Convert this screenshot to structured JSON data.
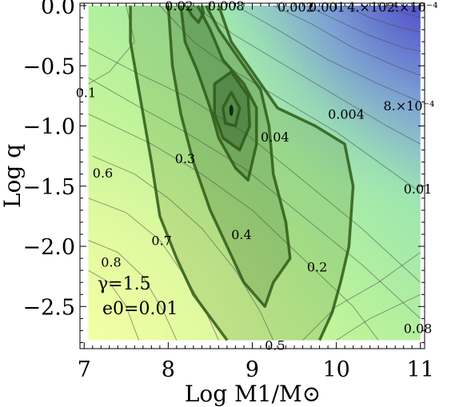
{
  "chart_data": {
    "type": "contour",
    "xlabel": "Log M1/M⊙",
    "ylabel": "Log q",
    "xlim": [
      6.95,
      11.05
    ],
    "ylim": [
      -2.85,
      0.02
    ],
    "x_ticks": [
      {
        "value": 7,
        "label": "7"
      },
      {
        "value": 8,
        "label": "8"
      },
      {
        "value": 9,
        "label": "9"
      },
      {
        "value": 10,
        "label": "10"
      },
      {
        "value": 11,
        "label": "11"
      }
    ],
    "y_ticks": [
      {
        "value": 0.0,
        "label": "0.0"
      },
      {
        "value": -0.5,
        "label": "−0.5"
      },
      {
        "value": -1.0,
        "label": "−1.0"
      },
      {
        "value": -1.5,
        "label": "−1.5"
      },
      {
        "value": -2.0,
        "label": "−2.0"
      },
      {
        "value": -2.5,
        "label": "−2.5"
      }
    ],
    "parameters": {
      "gamma_label": "γ=1.5",
      "e0_label": "e0=0.01"
    },
    "colors": {
      "low": "#f0ffa0",
      "mid": "#a8f090",
      "high": "#7070d0",
      "thick_contour": "#2e5a18",
      "thin_contour": "#555555"
    },
    "thin_contour_labels": [
      {
        "text": "0.1",
        "x": 6.9,
        "y": -0.72
      },
      {
        "text": "0.6",
        "x": 7.1,
        "y": -1.39
      },
      {
        "text": "0.7",
        "x": 7.8,
        "y": -1.95
      },
      {
        "text": "0.8",
        "x": 7.2,
        "y": -2.13
      },
      {
        "text": "0.02",
        "x": 7.96,
        "y": 0.0
      },
      {
        "text": "0.008",
        "x": 8.47,
        "y": 0.0
      },
      {
        "text": "0.002",
        "x": 9.3,
        "y": -0.01
      },
      {
        "text": "0.001",
        "x": 9.67,
        "y": -0.01
      },
      {
        "text": "4.×10⁻⁴",
        "x": 10.13,
        "y": -0.01
      },
      {
        "text": "2.×10⁻⁴",
        "x": 10.6,
        "y": -0.01
      },
      {
        "text": "8.×10⁻⁴",
        "x": 10.56,
        "y": -0.83
      },
      {
        "text": "0.004",
        "x": 9.9,
        "y": -0.9
      },
      {
        "text": "0.01",
        "x": 10.8,
        "y": -1.52
      },
      {
        "text": "0.08",
        "x": 10.8,
        "y": -2.68
      },
      {
        "text": "0.5",
        "x": 9.15,
        "y": -2.82
      }
    ],
    "thick_contour_labels": [
      {
        "text": "0.04",
        "x": 9.1,
        "y": -1.09
      },
      {
        "text": "0.3",
        "x": 8.08,
        "y": -1.27
      },
      {
        "text": "0.4",
        "x": 8.75,
        "y": -1.9
      },
      {
        "text": "0.2",
        "x": 9.65,
        "y": -2.17
      }
    ],
    "peak": {
      "x": 8.75,
      "y": -0.87
    }
  }
}
